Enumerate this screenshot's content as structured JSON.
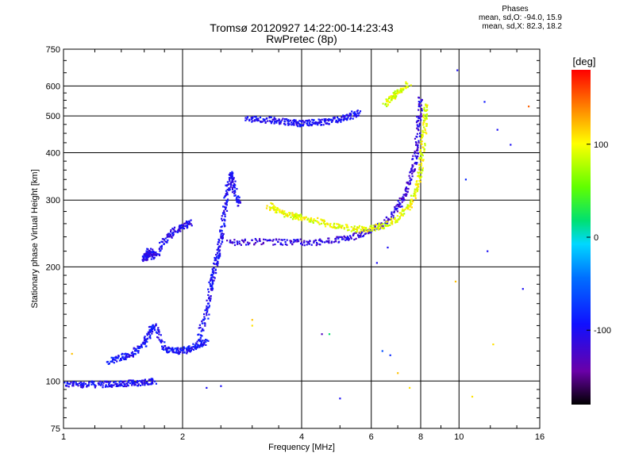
{
  "header": {
    "title_line1": "Tromsø 20120927 14:22:00-14:23:43",
    "title_line2": "RwPretec (8p)"
  },
  "phases": {
    "title": "Phases",
    "line_o": "mean, sd,O: -94.0, 15.9",
    "line_x": "mean, sd,X:  82.3, 18.2"
  },
  "colorbar": {
    "unit": "[deg]",
    "ticks": [
      {
        "value": 100,
        "label": "100"
      },
      {
        "value": 0,
        "label": "0"
      },
      {
        "value": -100,
        "label": "-100"
      }
    ],
    "range": [
      -180,
      180
    ]
  },
  "chart_data": {
    "type": "scatter",
    "xlabel": "Frequency [MHz]",
    "ylabel": "Stationary phase Virtual Height [km]",
    "xscale": "log",
    "yscale": "log",
    "xlim": [
      1,
      16
    ],
    "ylim": [
      75,
      750
    ],
    "xticks": [
      1,
      2,
      4,
      6,
      8,
      10,
      16
    ],
    "xtick_labels": [
      "1",
      "2",
      "4",
      "6",
      "8",
      "10",
      "16"
    ],
    "yticks": [
      75,
      100,
      200,
      300,
      400,
      500,
      600,
      750
    ],
    "ytick_labels": [
      "75",
      "100",
      "200",
      "300",
      "400",
      "500",
      "600",
      "750"
    ],
    "grid": true,
    "color_scale": "phase in degrees (rainbow, -180 black/purple to +180 red)",
    "traces": [
      {
        "mode": "O",
        "phase": -100,
        "points": [
          [
            1.0,
            98
          ],
          [
            1.1,
            98
          ],
          [
            1.2,
            98
          ],
          [
            1.3,
            98
          ],
          [
            1.4,
            98
          ],
          [
            1.5,
            99
          ],
          [
            1.6,
            99
          ],
          [
            1.7,
            100
          ]
        ]
      },
      {
        "mode": "O",
        "phase": -95,
        "points": [
          [
            1.3,
            113
          ],
          [
            1.4,
            115
          ],
          [
            1.5,
            118
          ],
          [
            1.6,
            125
          ],
          [
            1.65,
            135
          ],
          [
            1.7,
            140
          ],
          [
            1.8,
            122
          ],
          [
            1.9,
            120
          ],
          [
            2.0,
            120
          ],
          [
            2.1,
            122
          ],
          [
            2.2,
            125
          ],
          [
            2.3,
            127
          ]
        ]
      },
      {
        "mode": "O",
        "phase": -105,
        "points": [
          [
            1.6,
            208
          ],
          [
            1.62,
            215
          ],
          [
            1.65,
            220
          ],
          [
            1.7,
            212
          ],
          [
            1.8,
            235
          ],
          [
            1.9,
            248
          ],
          [
            2.0,
            255
          ],
          [
            2.1,
            262
          ]
        ]
      },
      {
        "mode": "O",
        "phase": -100,
        "points": [
          [
            2.2,
            130
          ],
          [
            2.3,
            150
          ],
          [
            2.35,
            175
          ],
          [
            2.4,
            195
          ],
          [
            2.45,
            215
          ],
          [
            2.5,
            240
          ],
          [
            2.55,
            280
          ],
          [
            2.6,
            320
          ],
          [
            2.65,
            355
          ],
          [
            2.7,
            320
          ],
          [
            2.8,
            290
          ]
        ]
      },
      {
        "mode": "O",
        "phase": -115,
        "points": [
          [
            2.6,
            232
          ],
          [
            3.0,
            233
          ],
          [
            3.5,
            233
          ],
          [
            4.0,
            232
          ],
          [
            4.5,
            233
          ],
          [
            5.0,
            236
          ],
          [
            5.5,
            242
          ],
          [
            6.0,
            250
          ],
          [
            6.5,
            262
          ],
          [
            7.0,
            285
          ],
          [
            7.3,
            310
          ],
          [
            7.6,
            350
          ],
          [
            7.8,
            400
          ],
          [
            7.9,
            480
          ],
          [
            8.0,
            560
          ]
        ]
      },
      {
        "mode": "O",
        "phase": -100,
        "points": [
          [
            2.9,
            490
          ],
          [
            3.2,
            490
          ],
          [
            3.5,
            485
          ],
          [
            3.8,
            480
          ],
          [
            4.0,
            478
          ],
          [
            4.3,
            480
          ],
          [
            4.6,
            482
          ],
          [
            5.0,
            490
          ],
          [
            5.3,
            500
          ],
          [
            5.6,
            512
          ]
        ]
      },
      {
        "mode": "X",
        "phase": 95,
        "points": [
          [
            3.3,
            290
          ],
          [
            3.5,
            280
          ],
          [
            3.8,
            272
          ],
          [
            4.0,
            270
          ],
          [
            4.5,
            262
          ],
          [
            5.0,
            255
          ],
          [
            5.5,
            252
          ],
          [
            6.0,
            252
          ],
          [
            6.5,
            258
          ],
          [
            7.0,
            268
          ],
          [
            7.5,
            290
          ],
          [
            7.8,
            320
          ],
          [
            8.0,
            360
          ],
          [
            8.1,
            420
          ],
          [
            8.2,
            480
          ],
          [
            8.2,
            540
          ]
        ]
      },
      {
        "mode": "X",
        "phase": 90,
        "points": [
          [
            6.5,
            540
          ],
          [
            6.8,
            560
          ],
          [
            7.0,
            575
          ],
          [
            7.5,
            610
          ]
        ]
      }
    ],
    "isolated_points": [
      {
        "x": 1.05,
        "y": 118,
        "phase": 120
      },
      {
        "x": 3.0,
        "y": 145,
        "phase": 120
      },
      {
        "x": 3.0,
        "y": 140,
        "phase": 110
      },
      {
        "x": 4.5,
        "y": 133,
        "phase": -130
      },
      {
        "x": 4.7,
        "y": 133,
        "phase": 20
      },
      {
        "x": 5.0,
        "y": 90,
        "phase": -100
      },
      {
        "x": 6.4,
        "y": 120,
        "phase": -60
      },
      {
        "x": 6.7,
        "y": 117,
        "phase": -80
      },
      {
        "x": 7.0,
        "y": 105,
        "phase": 120
      },
      {
        "x": 7.5,
        "y": 96,
        "phase": 110
      },
      {
        "x": 9.8,
        "y": 183,
        "phase": 120
      },
      {
        "x": 10.8,
        "y": 91,
        "phase": 110
      },
      {
        "x": 12.2,
        "y": 125,
        "phase": 110
      },
      {
        "x": 9.9,
        "y": 660,
        "phase": -100
      },
      {
        "x": 10.4,
        "y": 340,
        "phase": -80
      },
      {
        "x": 11.6,
        "y": 545,
        "phase": -90
      },
      {
        "x": 11.8,
        "y": 220,
        "phase": -100
      },
      {
        "x": 12.5,
        "y": 460,
        "phase": -100
      },
      {
        "x": 13.5,
        "y": 420,
        "phase": -100
      },
      {
        "x": 14.5,
        "y": 175,
        "phase": -100
      },
      {
        "x": 15.0,
        "y": 530,
        "phase": 150
      },
      {
        "x": 2.5,
        "y": 97,
        "phase": -100
      },
      {
        "x": 2.3,
        "y": 96,
        "phase": -100
      },
      {
        "x": 6.2,
        "y": 205,
        "phase": -100
      },
      {
        "x": 6.6,
        "y": 225,
        "phase": -100
      }
    ]
  }
}
